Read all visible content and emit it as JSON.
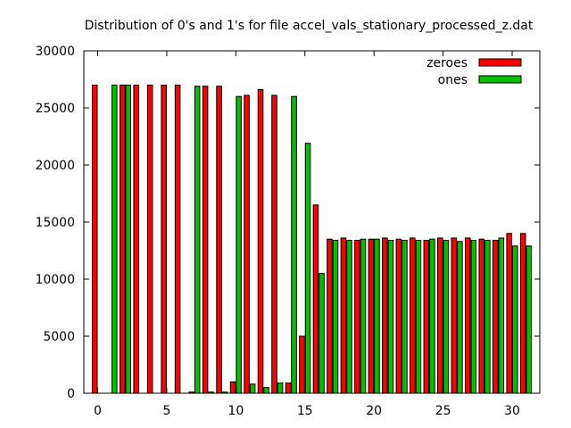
{
  "chart_data": {
    "type": "bar",
    "title": "Distribution of 0's and 1's for file accel_vals_stationary_processed_z.dat",
    "xlabel": "",
    "ylabel": "",
    "xlim": [
      -1,
      32
    ],
    "ylim": [
      0,
      30000
    ],
    "x_ticks": [
      0,
      5,
      10,
      15,
      20,
      25,
      30
    ],
    "y_ticks": [
      0,
      5000,
      10000,
      15000,
      20000,
      25000,
      30000
    ],
    "grid": false,
    "legend_position": "top-right",
    "categories": [
      0,
      1,
      2,
      3,
      4,
      5,
      6,
      7,
      8,
      9,
      10,
      11,
      12,
      13,
      14,
      15,
      16,
      17,
      18,
      19,
      20,
      21,
      22,
      23,
      24,
      25,
      26,
      27,
      28,
      29,
      30,
      31
    ],
    "series": [
      {
        "name": "zeroes",
        "color": "#ff0000",
        "values": [
          27000,
          0,
          27000,
          27000,
          27000,
          27000,
          27000,
          100,
          26900,
          26900,
          1000,
          26100,
          26600,
          26100,
          900,
          5000,
          16500,
          13500,
          13600,
          13400,
          13500,
          13600,
          13500,
          13600,
          13400,
          13600,
          13600,
          13600,
          13500,
          13400,
          14000,
          14000
        ]
      },
      {
        "name": "ones",
        "color": "#00c000",
        "values": [
          0,
          27000,
          27000,
          0,
          0,
          0,
          0,
          26900,
          100,
          100,
          26000,
          800,
          500,
          900,
          26000,
          21900,
          10500,
          13400,
          13400,
          13500,
          13500,
          13400,
          13400,
          13400,
          13500,
          13400,
          13300,
          13400,
          13400,
          13600,
          12900,
          12900
        ]
      }
    ]
  }
}
